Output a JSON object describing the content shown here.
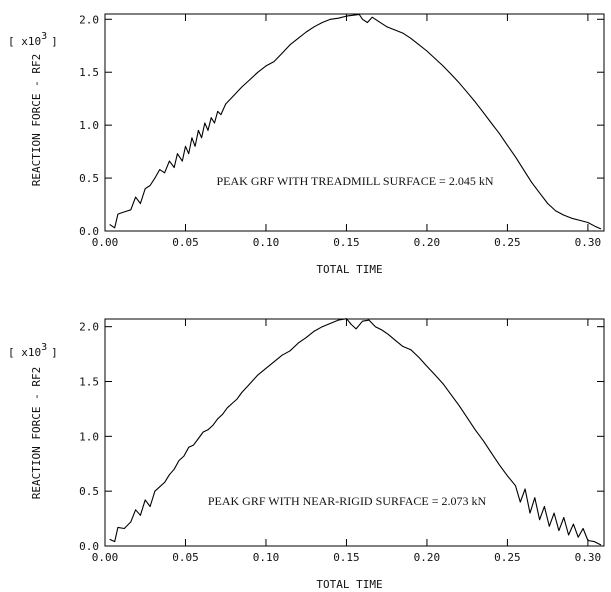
{
  "chart_data": [
    {
      "type": "line",
      "xlabel": "TOTAL TIME",
      "ylabel": "REACTION FORCE - RF2",
      "multiplier": {
        "prefix": "[ x10",
        "exp": "3",
        "suffix": "]"
      },
      "xlim": [
        0.0,
        0.31
      ],
      "ylim": [
        0.0,
        2.05
      ],
      "x_ticks": [
        0.0,
        0.05,
        0.1,
        0.15,
        0.2,
        0.25,
        0.3
      ],
      "x_tick_labels": [
        "0.00",
        "0.05",
        "0.10",
        "0.15",
        "0.20",
        "0.25",
        "0.30"
      ],
      "y_ticks": [
        0.0,
        0.5,
        1.0,
        1.5,
        2.0
      ],
      "y_tick_labels": [
        "0.0",
        "0.5",
        "1.0",
        "1.5",
        "2.0"
      ],
      "annotation": "PEAK GRF WITH TREADMILL SURFACE = 2.045 kN",
      "series": [
        {
          "x": [
            0.003,
            0.006,
            0.008,
            0.012,
            0.016,
            0.019,
            0.022,
            0.025,
            0.028,
            0.031,
            0.034,
            0.037,
            0.04,
            0.043,
            0.045,
            0.048,
            0.05,
            0.052,
            0.054,
            0.056,
            0.058,
            0.06,
            0.062,
            0.064,
            0.066,
            0.068,
            0.07,
            0.072,
            0.075,
            0.08,
            0.085,
            0.09,
            0.095,
            0.1,
            0.105,
            0.11,
            0.115,
            0.12,
            0.125,
            0.13,
            0.135,
            0.14,
            0.145,
            0.15,
            0.155,
            0.158,
            0.16,
            0.163,
            0.166,
            0.17,
            0.175,
            0.18,
            0.185,
            0.19,
            0.195,
            0.2,
            0.205,
            0.21,
            0.215,
            0.22,
            0.225,
            0.23,
            0.235,
            0.24,
            0.245,
            0.25,
            0.255,
            0.26,
            0.265,
            0.27,
            0.275,
            0.28,
            0.285,
            0.29,
            0.295,
            0.3,
            0.305,
            0.308
          ],
          "y": [
            0.06,
            0.03,
            0.16,
            0.18,
            0.2,
            0.32,
            0.26,
            0.4,
            0.43,
            0.5,
            0.58,
            0.55,
            0.66,
            0.6,
            0.73,
            0.66,
            0.8,
            0.73,
            0.88,
            0.8,
            0.95,
            0.88,
            1.02,
            0.95,
            1.07,
            1.02,
            1.13,
            1.1,
            1.2,
            1.28,
            1.36,
            1.43,
            1.5,
            1.56,
            1.6,
            1.68,
            1.76,
            1.82,
            1.88,
            1.93,
            1.97,
            2.0,
            2.01,
            2.03,
            2.04,
            2.045,
            2.0,
            1.97,
            2.02,
            1.98,
            1.93,
            1.9,
            1.87,
            1.82,
            1.76,
            1.7,
            1.63,
            1.56,
            1.48,
            1.4,
            1.31,
            1.22,
            1.12,
            1.02,
            0.92,
            0.81,
            0.7,
            0.58,
            0.46,
            0.36,
            0.26,
            0.19,
            0.15,
            0.12,
            0.1,
            0.08,
            0.04,
            0.02
          ]
        }
      ]
    },
    {
      "type": "line",
      "xlabel": "TOTAL TIME",
      "ylabel": "REACTION FORCE - RF2",
      "multiplier": {
        "prefix": "[ x10",
        "exp": "3",
        "suffix": "]"
      },
      "xlim": [
        0.0,
        0.31
      ],
      "ylim": [
        0.0,
        2.07
      ],
      "x_ticks": [
        0.0,
        0.05,
        0.1,
        0.15,
        0.2,
        0.25,
        0.3
      ],
      "x_tick_labels": [
        "0.00",
        "0.05",
        "0.10",
        "0.15",
        "0.20",
        "0.25",
        "0.30"
      ],
      "y_ticks": [
        0.0,
        0.5,
        1.0,
        1.5,
        2.0
      ],
      "y_tick_labels": [
        "0.0",
        "0.5",
        "1.0",
        "1.5",
        "2.0"
      ],
      "annotation": "PEAK GRF WITH NEAR-RIGID SURFACE = 2.073 kN",
      "series": [
        {
          "x": [
            0.003,
            0.006,
            0.008,
            0.012,
            0.016,
            0.019,
            0.022,
            0.025,
            0.028,
            0.031,
            0.034,
            0.037,
            0.04,
            0.043,
            0.046,
            0.049,
            0.052,
            0.055,
            0.058,
            0.061,
            0.064,
            0.067,
            0.07,
            0.073,
            0.076,
            0.079,
            0.082,
            0.085,
            0.09,
            0.095,
            0.1,
            0.105,
            0.11,
            0.115,
            0.12,
            0.125,
            0.13,
            0.135,
            0.14,
            0.145,
            0.15,
            0.153,
            0.156,
            0.16,
            0.164,
            0.168,
            0.172,
            0.176,
            0.18,
            0.185,
            0.19,
            0.195,
            0.2,
            0.205,
            0.21,
            0.215,
            0.22,
            0.225,
            0.23,
            0.235,
            0.24,
            0.245,
            0.25,
            0.255,
            0.258,
            0.261,
            0.264,
            0.267,
            0.27,
            0.273,
            0.276,
            0.279,
            0.282,
            0.285,
            0.288,
            0.291,
            0.294,
            0.297,
            0.3,
            0.304,
            0.308
          ],
          "y": [
            0.06,
            0.04,
            0.17,
            0.16,
            0.22,
            0.33,
            0.28,
            0.42,
            0.36,
            0.5,
            0.54,
            0.58,
            0.65,
            0.7,
            0.78,
            0.82,
            0.9,
            0.92,
            0.98,
            1.04,
            1.06,
            1.1,
            1.16,
            1.2,
            1.26,
            1.3,
            1.34,
            1.4,
            1.48,
            1.56,
            1.62,
            1.68,
            1.74,
            1.78,
            1.85,
            1.9,
            1.96,
            2.0,
            2.03,
            2.06,
            2.073,
            2.02,
            1.98,
            2.05,
            2.06,
            2.0,
            1.97,
            1.93,
            1.88,
            1.82,
            1.79,
            1.72,
            1.64,
            1.56,
            1.48,
            1.38,
            1.28,
            1.17,
            1.06,
            0.96,
            0.85,
            0.74,
            0.64,
            0.55,
            0.4,
            0.52,
            0.3,
            0.44,
            0.24,
            0.36,
            0.18,
            0.3,
            0.14,
            0.26,
            0.1,
            0.2,
            0.08,
            0.16,
            0.05,
            0.04,
            0.01
          ]
        }
      ]
    }
  ]
}
